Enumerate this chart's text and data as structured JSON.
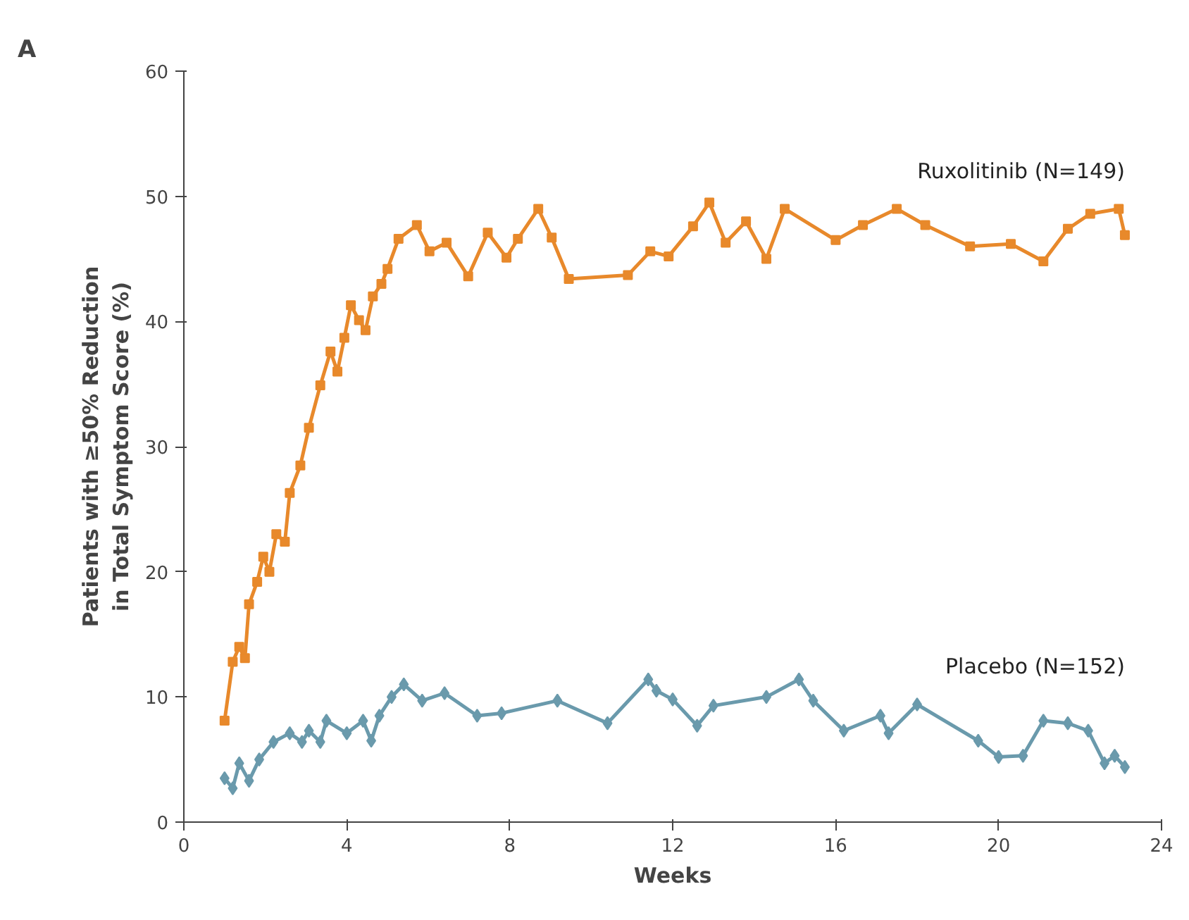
{
  "chart_data": {
    "type": "line",
    "xlabel": "Weeks",
    "ylabel": "Patients with ≥50% Reduction\nin Total Symptom Score (%)",
    "annotations": [
      "A"
    ],
    "xlim": [
      0,
      24
    ],
    "xticks": [
      0,
      4,
      8,
      12,
      16,
      20,
      24
    ],
    "ylim": [
      0,
      60
    ],
    "yticks": [
      0,
      10,
      20,
      30,
      40,
      50,
      60
    ],
    "grid": false,
    "line_style": "solid",
    "series": [
      {
        "name": "Ruxolitinib (N=149)",
        "color": "#e8892b",
        "marker": "square",
        "x": [
          1.0,
          1.2,
          1.36,
          1.5,
          1.6,
          1.8,
          1.95,
          2.1,
          2.27,
          2.48,
          2.6,
          2.86,
          3.07,
          3.35,
          3.6,
          3.77,
          3.94,
          4.1,
          4.3,
          4.46,
          4.64,
          4.85,
          5.0,
          5.27,
          5.72,
          6.03,
          6.45,
          6.98,
          7.46,
          7.92,
          8.2,
          8.7,
          9.03,
          9.45,
          10.9,
          11.45,
          11.9,
          12.5,
          12.9,
          13.3,
          13.8,
          14.3,
          14.75,
          16.0,
          16.67,
          17.5,
          18.2,
          19.3,
          20.3,
          21.1,
          21.7,
          22.25,
          22.95,
          23.1
        ],
        "values": [
          8.1,
          12.8,
          14,
          13.1,
          17.4,
          19.2,
          21.2,
          20,
          23,
          22.4,
          26.3,
          28.5,
          31.5,
          34.9,
          37.6,
          36,
          38.7,
          41.3,
          40.1,
          39.3,
          42,
          43,
          44.2,
          46.6,
          47.7,
          45.6,
          46.3,
          43.6,
          47.1,
          45.1,
          46.6,
          49,
          46.7,
          43.4,
          43.7,
          45.6,
          45.2,
          47.6,
          49.5,
          46.3,
          48,
          45,
          49,
          46.5,
          47.7,
          49,
          47.7,
          46,
          46.2,
          44.8,
          47.4,
          48.6,
          49,
          46.9
        ]
      },
      {
        "name": "Placebo (N=152)",
        "color": "#6a9aac",
        "marker": "diamond",
        "x": [
          1.0,
          1.2,
          1.36,
          1.6,
          1.85,
          2.2,
          2.6,
          2.9,
          3.07,
          3.35,
          3.5,
          4.0,
          4.4,
          4.6,
          4.8,
          5.1,
          5.4,
          5.85,
          6.4,
          7.2,
          7.8,
          9.17,
          10.4,
          11.4,
          11.6,
          12.0,
          12.6,
          13.0,
          14.3,
          15.1,
          15.45,
          16.2,
          17.1,
          17.3,
          18.0,
          19.5,
          20.0,
          20.6,
          21.1,
          21.7,
          22.2,
          22.6,
          22.85,
          23.1
        ],
        "values": [
          3.5,
          2.7,
          4.7,
          3.3,
          5,
          6.4,
          7.1,
          6.4,
          7.3,
          6.4,
          8.1,
          7.1,
          8.1,
          6.5,
          8.5,
          10,
          11,
          9.7,
          10.3,
          8.5,
          8.7,
          9.7,
          7.9,
          11.4,
          10.5,
          9.8,
          7.7,
          9.3,
          10,
          11.4,
          9.7,
          7.3,
          8.5,
          7.1,
          9.4,
          6.5,
          5.2,
          5.3,
          8.1,
          7.9,
          7.3,
          4.7,
          5.3,
          4.4
        ]
      }
    ]
  }
}
